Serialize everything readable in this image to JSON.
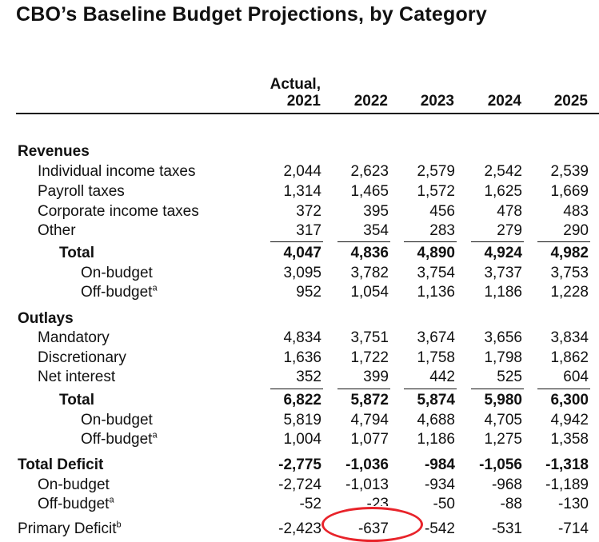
{
  "title": "CBO’s Baseline Budget Projections, by Category",
  "header": {
    "actual_label": "Actual,",
    "years": [
      "2021",
      "2022",
      "2023",
      "2024",
      "2025"
    ]
  },
  "annotation_color": "#e8232a",
  "rows": [
    {
      "type": "section",
      "label": "Revenues"
    },
    {
      "type": "item",
      "label": "Individual income taxes",
      "values": [
        "2,044",
        "2,623",
        "2,579",
        "2,542",
        "2,539"
      ]
    },
    {
      "type": "item",
      "label": "Payroll taxes",
      "values": [
        "1,314",
        "1,465",
        "1,572",
        "1,625",
        "1,669"
      ]
    },
    {
      "type": "item",
      "label": "Corporate income taxes",
      "values": [
        "372",
        "395",
        "456",
        "478",
        "483"
      ]
    },
    {
      "type": "item",
      "label": "Other",
      "values": [
        "317",
        "354",
        "283",
        "279",
        "290"
      ]
    },
    {
      "type": "total",
      "label": "Total",
      "values": [
        "4,047",
        "4,836",
        "4,890",
        "4,924",
        "4,982"
      ]
    },
    {
      "type": "sub",
      "label": "On-budget",
      "values": [
        "3,095",
        "3,782",
        "3,754",
        "3,737",
        "3,753"
      ]
    },
    {
      "type": "sub",
      "label": "Off-budget",
      "sup": "a",
      "values": [
        "952",
        "1,054",
        "1,136",
        "1,186",
        "1,228"
      ]
    },
    {
      "type": "section",
      "label": "Outlays"
    },
    {
      "type": "item",
      "label": "Mandatory",
      "values": [
        "4,834",
        "3,751",
        "3,674",
        "3,656",
        "3,834"
      ]
    },
    {
      "type": "item",
      "label": "Discretionary",
      "values": [
        "1,636",
        "1,722",
        "1,758",
        "1,798",
        "1,862"
      ]
    },
    {
      "type": "item",
      "label": "Net interest",
      "values": [
        "352",
        "399",
        "442",
        "525",
        "604"
      ]
    },
    {
      "type": "total",
      "label": "Total",
      "values": [
        "6,822",
        "5,872",
        "5,874",
        "5,980",
        "6,300"
      ]
    },
    {
      "type": "sub",
      "label": "On-budget",
      "values": [
        "5,819",
        "4,794",
        "4,688",
        "4,705",
        "4,942"
      ]
    },
    {
      "type": "sub",
      "label": "Off-budget",
      "sup": "a",
      "values": [
        "1,004",
        "1,077",
        "1,186",
        "1,275",
        "1,358"
      ]
    },
    {
      "type": "deficit",
      "label": "Total Deficit",
      "values": [
        "-2,775",
        "-1,036",
        "-984",
        "-1,056",
        "-1,318"
      ]
    },
    {
      "type": "item",
      "label": "On-budget",
      "values": [
        "-2,724",
        "-1,013",
        "-934",
        "-968",
        "-1,189"
      ]
    },
    {
      "type": "item",
      "label": "Off-budget",
      "sup": "a",
      "values": [
        "-52",
        "-23",
        "-50",
        "-88",
        "-130"
      ]
    },
    {
      "type": "primary",
      "label": "Primary Deficit",
      "sup": "b",
      "values": [
        "-2,423",
        "-637",
        "-542",
        "-531",
        "-714"
      ]
    }
  ]
}
